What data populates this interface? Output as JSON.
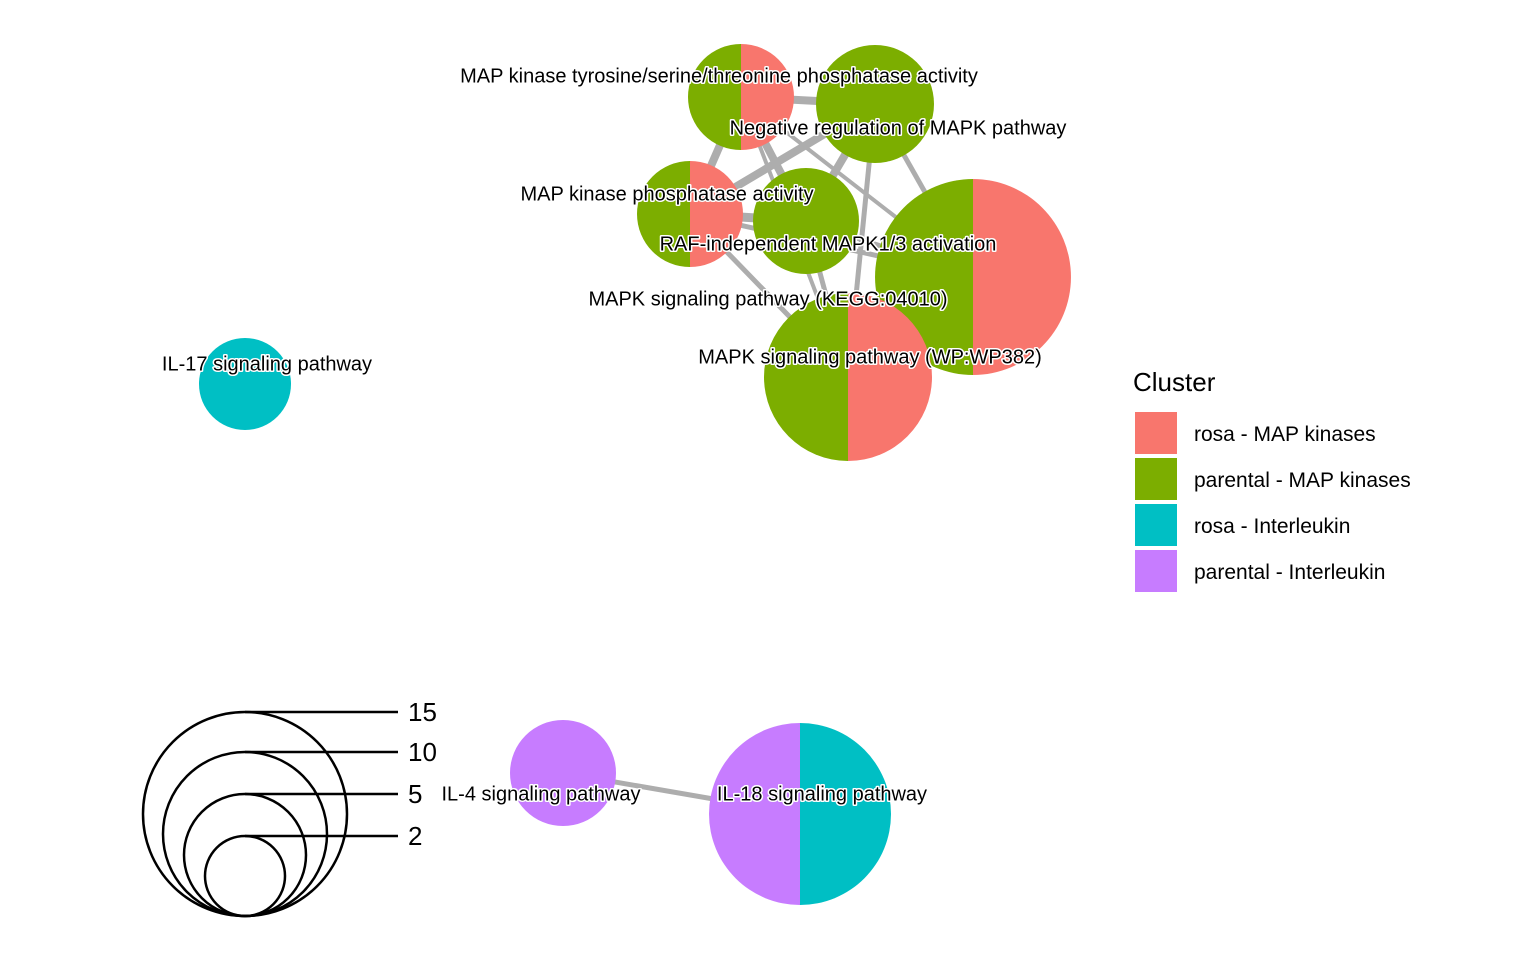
{
  "clusters": [
    {
      "key": "rosa_map",
      "label": "rosa - MAP kinases",
      "color": "#F8766D"
    },
    {
      "key": "parental_map",
      "label": "parental - MAP kinases",
      "color": "#7CAE00"
    },
    {
      "key": "rosa_il",
      "label": "rosa - Interleukin",
      "color": "#00BFC4"
    },
    {
      "key": "parental_il",
      "label": "parental - Interleukin",
      "color": "#C77CFF"
    }
  ],
  "legend": {
    "title": "Cluster"
  },
  "size_legend": {
    "values": [
      "15",
      "10",
      "5",
      "2"
    ]
  },
  "nodes": [
    {
      "id": "map_kinase_tyr",
      "label": "MAP kinase tyrosine/serine/threonine phosphatase activity",
      "slices": [
        "parental_map",
        "rosa_map"
      ]
    },
    {
      "id": "neg_reg_mapk",
      "label": "Negative regulation of MAPK pathway",
      "slices": [
        "parental_map"
      ]
    },
    {
      "id": "map_kinase_phos",
      "label": "MAP kinase phosphatase activity",
      "slices": [
        "parental_map",
        "rosa_map"
      ]
    },
    {
      "id": "raf_indep",
      "label": "RAF-independent MAPK1/3 activation",
      "slices": [
        "parental_map"
      ]
    },
    {
      "id": "mapk_kegg",
      "label": "MAPK signaling pathway (KEGG:04010)",
      "slices": [
        "parental_map",
        "rosa_map"
      ]
    },
    {
      "id": "mapk_wp",
      "label": "MAPK signaling pathway (WP:WP382)",
      "slices": [
        "parental_map",
        "rosa_map"
      ]
    },
    {
      "id": "il17",
      "label": "IL-17 signaling pathway",
      "slices": [
        "rosa_il"
      ]
    },
    {
      "id": "il4",
      "label": "IL-4 signaling pathway",
      "slices": [
        "parental_il"
      ]
    },
    {
      "id": "il18",
      "label": "IL-18 signaling pathway",
      "slices": [
        "parental_il",
        "rosa_il"
      ]
    }
  ],
  "edges": [
    [
      "map_kinase_tyr",
      "neg_reg_mapk"
    ],
    [
      "map_kinase_tyr",
      "map_kinase_phos"
    ],
    [
      "map_kinase_tyr",
      "raf_indep"
    ],
    [
      "map_kinase_tyr",
      "mapk_kegg"
    ],
    [
      "map_kinase_tyr",
      "mapk_wp"
    ],
    [
      "neg_reg_mapk",
      "map_kinase_phos"
    ],
    [
      "neg_reg_mapk",
      "raf_indep"
    ],
    [
      "neg_reg_mapk",
      "mapk_kegg"
    ],
    [
      "neg_reg_mapk",
      "mapk_wp"
    ],
    [
      "map_kinase_phos",
      "raf_indep"
    ],
    [
      "map_kinase_phos",
      "mapk_kegg"
    ],
    [
      "map_kinase_phos",
      "mapk_wp"
    ],
    [
      "raf_indep",
      "mapk_kegg"
    ],
    [
      "raf_indep",
      "mapk_wp"
    ],
    [
      "il4",
      "il18"
    ]
  ]
}
